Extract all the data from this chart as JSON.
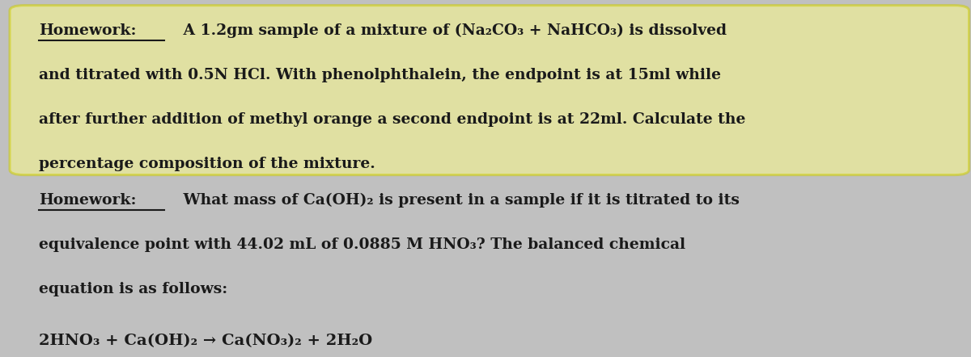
{
  "bg_color": "#c0c0c0",
  "text_color": "#1a1a1a",
  "highlight_color": "#ffff88",
  "highlight_edge": "#cccc00",
  "title1": "Homework:",
  "line1a": "A 1.2gm sample of a mixture of (Na₂CO₃ + NaHCO₃) is dissolved",
  "line1b": "and titrated with 0.5N HCl. With phenolphthalein, the endpoint is at 15ml while",
  "line1c": "after further addition of methyl orange a second endpoint is at 22ml. Calculate the",
  "line1d": "percentage composition of the mixture.",
  "title2": "Homework:",
  "line2a": "What mass of Ca(OH)₂ is present in a sample if it is titrated to its",
  "line2b": "equivalence point with 44.02 mL of 0.0885 M HNO₃? The balanced chemical",
  "line2c": "equation is as follows:",
  "equation": "2HNO₃ + Ca(OH)₂ → Ca(NO₃)₂ + 2H₂O",
  "fontsize": 13.5,
  "fontsize_eq": 14.0,
  "underline_color": "#1a1a1a"
}
